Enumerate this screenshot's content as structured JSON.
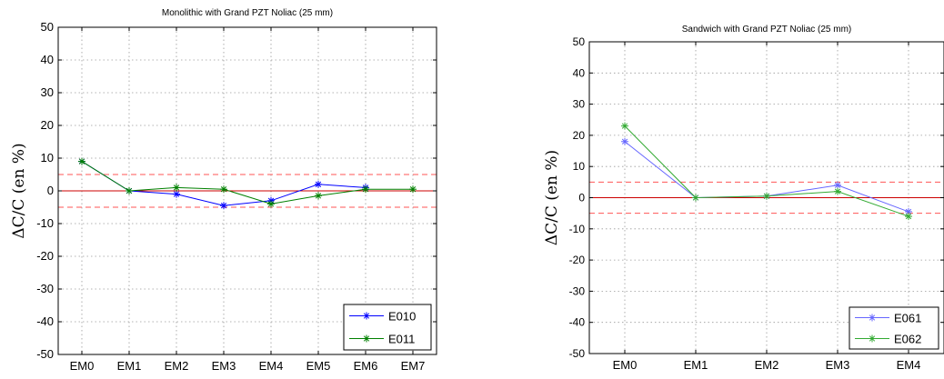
{
  "chart_data": [
    {
      "type": "line",
      "title": "Monolithic with Grand PZT Noliac (25 mm)",
      "ylabel": "ΔC/C (en %)",
      "xlabel": "",
      "categories": [
        "EM0",
        "EM1",
        "EM2",
        "EM3",
        "EM4",
        "EM5",
        "EM6",
        "EM7"
      ],
      "ylim": [
        -50,
        50
      ],
      "yticks": [
        -50,
        -40,
        -30,
        -20,
        -10,
        0,
        10,
        20,
        30,
        40,
        50
      ],
      "grid": true,
      "legend_position": "bottom-right",
      "reference_lines": [
        {
          "y": 0,
          "color": "#cc0000",
          "style": "solid"
        },
        {
          "y": 5,
          "color": "#ff5555",
          "style": "dashed"
        },
        {
          "y": -5,
          "color": "#ff5555",
          "style": "dashed"
        }
      ],
      "series": [
        {
          "name": "E010",
          "color": "#0000ff",
          "values": [
            9,
            0,
            -1,
            -4.5,
            -3,
            2,
            1,
            null
          ]
        },
        {
          "name": "E011",
          "color": "#008000",
          "values": [
            9,
            0,
            1,
            0.5,
            -4,
            -1.5,
            0.5,
            0.5
          ]
        }
      ]
    },
    {
      "type": "line",
      "title": "Sandwich with Grand PZT Noliac (25 mm)",
      "ylabel": "ΔC/C (en %)",
      "xlabel": "",
      "categories": [
        "EM0",
        "EM1",
        "EM2",
        "EM3",
        "EM4"
      ],
      "ylim": [
        -50,
        50
      ],
      "yticks": [
        -50,
        -40,
        -30,
        -20,
        -10,
        0,
        10,
        20,
        30,
        40,
        50
      ],
      "grid": true,
      "legend_position": "bottom-right",
      "reference_lines": [
        {
          "y": 0,
          "color": "#cc0000",
          "style": "solid"
        },
        {
          "y": 5,
          "color": "#ff5555",
          "style": "dashed"
        },
        {
          "y": -5,
          "color": "#ff5555",
          "style": "dashed"
        }
      ],
      "series": [
        {
          "name": "E061",
          "color": "#6666ff",
          "values": [
            18,
            0,
            0.5,
            4,
            -4.5
          ]
        },
        {
          "name": "E062",
          "color": "#33aa33",
          "values": [
            23,
            0,
            0.5,
            2,
            -6
          ]
        }
      ]
    }
  ]
}
